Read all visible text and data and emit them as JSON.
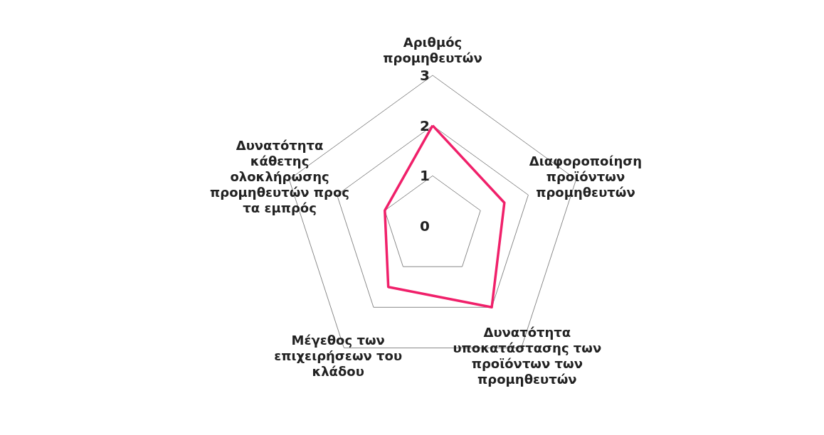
{
  "chart_data": {
    "type": "radar",
    "categories": [
      "Αριθμός προμηθευτών",
      "Διαφοροποίηση προϊόντων προμηθευτών",
      "Δυνατότητα υποκατάστασης των προϊόντων των προμηθευτών",
      "Μέγεθος των επιχειρήσεων του κλάδου",
      "Δυνατότητα κάθετης ολοκλήρωσης προμηθευτών προς τα εμπρός"
    ],
    "series": [
      {
        "color": "#f0206a",
        "values": [
          2,
          1.5,
          2,
          1.5,
          1
        ]
      }
    ],
    "ylim": [
      0,
      3
    ],
    "yticks": [
      0,
      1,
      2,
      3
    ],
    "marker": "none",
    "line_style": "solid"
  }
}
